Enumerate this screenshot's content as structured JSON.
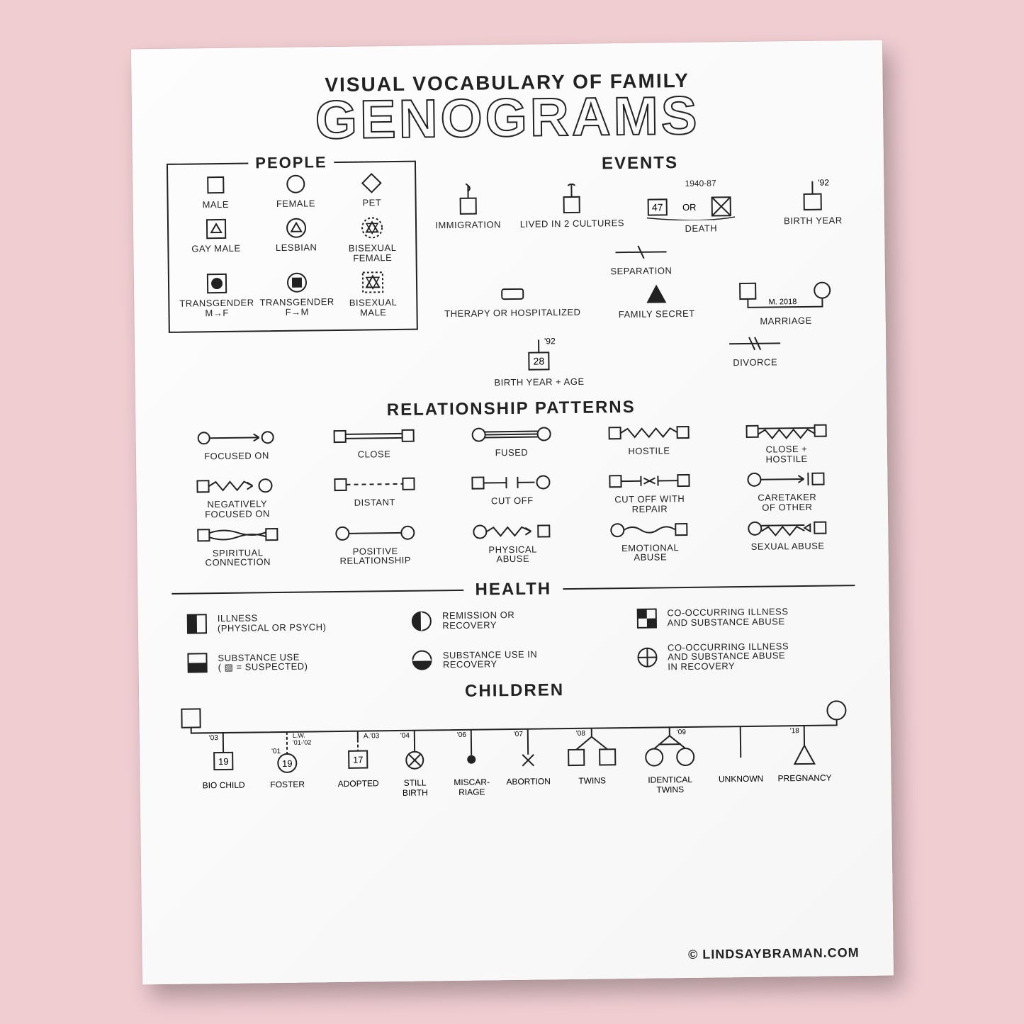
{
  "colors": {
    "bg": "#efcdd1",
    "paper": "#fdfdfd",
    "ink": "#222222"
  },
  "title": {
    "small": "VISUAL VOCABULARY OF FAMILY",
    "big": "GENOGRAMS"
  },
  "sections": {
    "people": "PEOPLE",
    "events": "EVENTS",
    "relationships": "RELATIONSHIP PATTERNS",
    "health": "HEALTH",
    "children": "CHILDREN"
  },
  "people": [
    {
      "label": "MALE"
    },
    {
      "label": "FEMALE"
    },
    {
      "label": "PET"
    },
    {
      "label": "GAY\nMALE"
    },
    {
      "label": "LESBIAN"
    },
    {
      "label": "BISEXUAL\nFEMALE"
    },
    {
      "label": "TRANSGENDER\nM→F"
    },
    {
      "label": "TRANSGENDER\nF→M"
    },
    {
      "label": "BISEXUAL\nMALE"
    }
  ],
  "events": [
    {
      "label": "IMMIGRATION"
    },
    {
      "label": "LIVED IN 2\nCULTURES"
    },
    {
      "label": "DEATH",
      "note": "1940-87",
      "chip": "47",
      "or": "OR"
    },
    {
      "label": "BIRTH YEAR",
      "note": "'92"
    },
    {
      "label": "SEPARATION"
    },
    {
      "label": "THERAPY OR\nHOSPITALIZED"
    },
    {
      "label": "FAMILY\nSECRET"
    },
    {
      "label": "MARRIAGE",
      "note": "M. 2018"
    },
    {
      "label": "BIRTH YEAR\n+ AGE",
      "note": "'92",
      "chip": "28"
    },
    {
      "label": "DIVORCE"
    }
  ],
  "relationships": [
    {
      "label": "FOCUSED ON"
    },
    {
      "label": "CLOSE"
    },
    {
      "label": "FUSED"
    },
    {
      "label": "HOSTILE"
    },
    {
      "label": "CLOSE +\nHOSTILE"
    },
    {
      "label": "NEGATIVELY\nFOCUSED ON"
    },
    {
      "label": "DISTANT"
    },
    {
      "label": "CUT OFF"
    },
    {
      "label": "CUT OFF WITH\nREPAIR"
    },
    {
      "label": "CARETAKER\nOF OTHER"
    },
    {
      "label": "SPIRITUAL\nCONNECTION"
    },
    {
      "label": "POSITIVE\nRELATIONSHIP"
    },
    {
      "label": "PHYSICAL\nABUSE"
    },
    {
      "label": "EMOTIONAL\nABUSE"
    },
    {
      "label": "SEXUAL ABUSE"
    }
  ],
  "health": [
    {
      "label": "ILLNESS\n(PHYSICAL OR PSYCH)"
    },
    {
      "label": "REMISSION OR\nRECOVERY"
    },
    {
      "label": "CO-OCCURRING ILLNESS\nAND SUBSTANCE ABUSE"
    },
    {
      "label": "SUBSTANCE USE\n( ▨ = SUSPECTED)"
    },
    {
      "label": "SUBSTANCE USE IN\nRECOVERY"
    },
    {
      "label": "CO-OCCURRING ILLNESS\nAND SUBSTANCE ABUSE\nIN RECOVERY"
    }
  ],
  "children": [
    {
      "label": "BIO CHILD",
      "note": "'03",
      "chip": "19"
    },
    {
      "label": "FOSTER",
      "note": "L.W.\n'01-'02\n'01",
      "chip": "19"
    },
    {
      "label": "ADOPTED",
      "note": "A. '03",
      "chip": "17"
    },
    {
      "label": "STILL\nBIRTH",
      "note": "'04"
    },
    {
      "label": "MISCAR-\nRIAGE",
      "note": "'06"
    },
    {
      "label": "ABORTION",
      "note": "'07"
    },
    {
      "label": "TWINS",
      "note": "'08"
    },
    {
      "label": "IDENTICAL\nTWINS",
      "note": "'09"
    },
    {
      "label": "UNKNOWN"
    },
    {
      "label": "PREGNANCY",
      "note": "'18"
    }
  ],
  "credit": "© LINDSAYBRAMAN.COM"
}
